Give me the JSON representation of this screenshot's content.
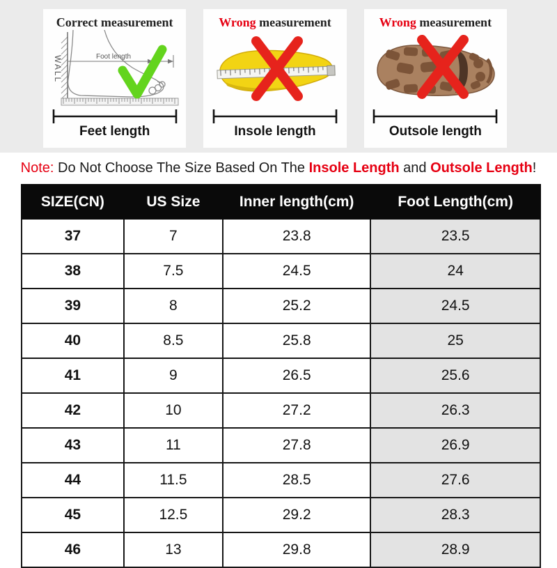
{
  "panels": [
    {
      "title_prefix": "Correct",
      "title_rest": " measurement",
      "prefix_red": false,
      "wall_label": "WALL",
      "dimension_label": "Foot length",
      "caption": "Feet length",
      "mark": "check-icon"
    },
    {
      "title_prefix": "Wrong",
      "title_rest": " measurement",
      "prefix_red": true,
      "caption": "Insole length",
      "mark": "cross-icon"
    },
    {
      "title_prefix": "Wrong",
      "title_rest": " measurement",
      "prefix_red": true,
      "caption": "Outsole length",
      "mark": "cross-icon"
    }
  ],
  "note": {
    "label": "Note:",
    "text1": " Do Not Choose The Size Based On The ",
    "highlight1": "Insole Length",
    "text2": " and ",
    "highlight2": "Outsole Length",
    "suffix": "!"
  },
  "size_table": {
    "headers": [
      "SIZE(CN)",
      "US Size",
      "Inner length(cm)",
      "Foot Length(cm)"
    ],
    "rows": [
      [
        "37",
        "7",
        "23.8",
        "23.5"
      ],
      [
        "38",
        "7.5",
        "24.5",
        "24"
      ],
      [
        "39",
        "8",
        "25.2",
        "24.5"
      ],
      [
        "40",
        "8.5",
        "25.8",
        "25"
      ],
      [
        "41",
        "9",
        "26.5",
        "25.6"
      ],
      [
        "42",
        "10",
        "27.2",
        "26.3"
      ],
      [
        "43",
        "11",
        "27.8",
        "26.9"
      ],
      [
        "44",
        "11.5",
        "28.5",
        "27.6"
      ],
      [
        "45",
        "12.5",
        "29.2",
        "28.3"
      ],
      [
        "46",
        "13",
        "29.8",
        "28.9"
      ]
    ]
  },
  "colors": {
    "accent_red": "#e60012",
    "check_green": "#63d41d",
    "insole_yellow": "#f2d414",
    "outsole_brown": "#aa8160",
    "header_bg": "#0a0a0a",
    "header_text": "#ffffff",
    "shaded_column": "#e3e3e3",
    "strip_bg": "#ebebeb"
  }
}
